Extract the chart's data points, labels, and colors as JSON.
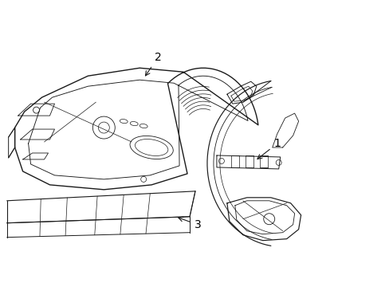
{
  "background_color": "#ffffff",
  "line_color": "#1a1a1a",
  "label_1": "1",
  "label_2": "2",
  "label_3": "3",
  "figsize": [
    4.89,
    3.6
  ],
  "dpi": 100
}
